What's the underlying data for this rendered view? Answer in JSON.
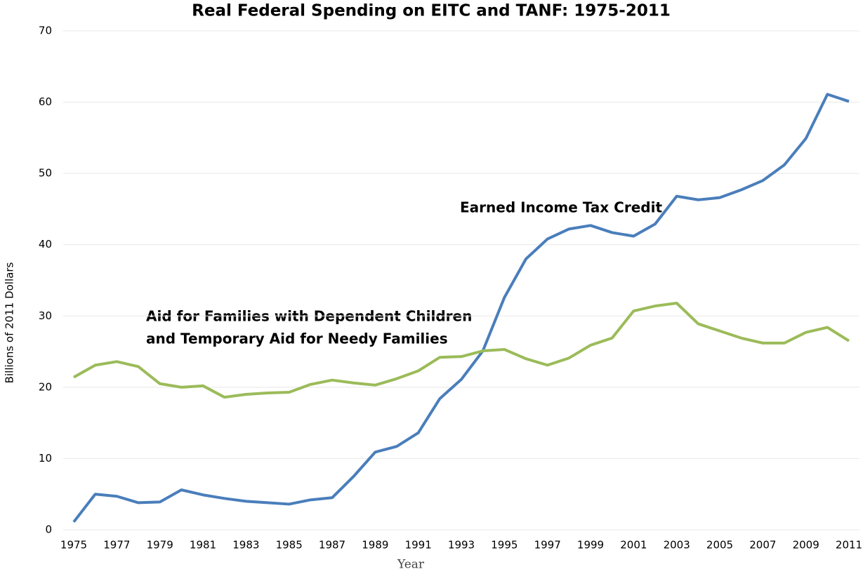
{
  "chart_data": {
    "type": "line",
    "title": "Real Federal Spending on EITC and TANF: 1975-2011",
    "x_label": "Year",
    "y_label": "Billions of 2011 Dollars",
    "x": [
      1975,
      1976,
      1977,
      1978,
      1979,
      1980,
      1981,
      1982,
      1983,
      1984,
      1985,
      1986,
      1987,
      1988,
      1989,
      1990,
      1991,
      1992,
      1993,
      1994,
      1995,
      1996,
      1997,
      1998,
      1999,
      2000,
      2001,
      2002,
      2003,
      2004,
      2005,
      2006,
      2007,
      2008,
      2009,
      2010,
      2011
    ],
    "series": [
      {
        "color": "#4a7ebb",
        "values": [
          1.1,
          5.0,
          4.7,
          3.8,
          3.9,
          5.6,
          4.9,
          4.4,
          4.0,
          3.8,
          3.6,
          4.2,
          4.5,
          7.5,
          10.9,
          11.7,
          13.6,
          18.4,
          21.1,
          25.1,
          32.6,
          38.0,
          40.8,
          42.2,
          42.7,
          41.7,
          41.2,
          42.9,
          46.8,
          46.3,
          46.6,
          47.7,
          49.0,
          51.2,
          54.9,
          61.1,
          60.1
        ]
      },
      {
        "color": "#9bbb59",
        "values": [
          21.4,
          23.1,
          23.6,
          22.9,
          20.5,
          20.0,
          20.2,
          18.6,
          19.0,
          19.2,
          19.3,
          20.4,
          21.0,
          20.6,
          20.3,
          21.2,
          22.3,
          24.2,
          24.3,
          25.1,
          25.3,
          24.0,
          23.1,
          24.1,
          25.9,
          26.9,
          30.7,
          31.4,
          31.8,
          28.9,
          27.9,
          26.9,
          26.2,
          26.2,
          27.7,
          28.4,
          26.5
        ]
      }
    ],
    "annotations": [
      "Earned Income Tax Credit",
      "Aid for Families with Dependent Children",
      "and Temporary Aid for Needy Families"
    ],
    "xlim": [
      1975,
      2011
    ],
    "xticks": [
      1975,
      1977,
      1979,
      1981,
      1983,
      1985,
      1987,
      1989,
      1991,
      1993,
      1995,
      1997,
      1999,
      2001,
      2003,
      2005,
      2007,
      2009,
      2011
    ],
    "ylim": [
      0,
      70
    ],
    "yticks": [
      0,
      10,
      20,
      30,
      40,
      50,
      60,
      70
    ],
    "grid": true
  }
}
